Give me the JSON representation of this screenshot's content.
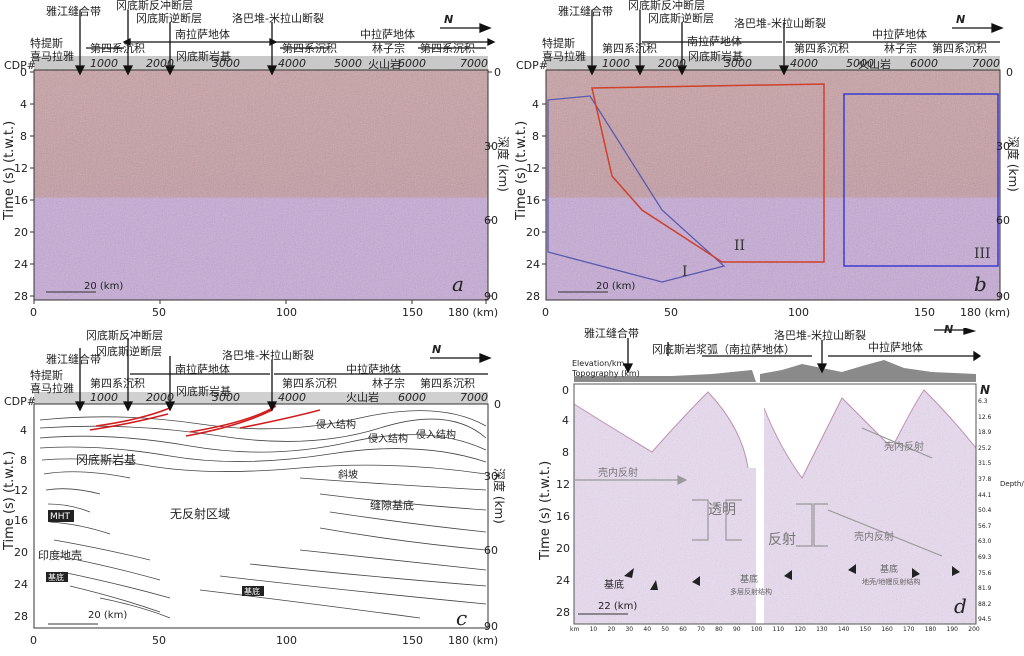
{
  "panels": {
    "a": {
      "letter": "a",
      "header": {
        "zones": [
          "雅江缝合带",
          "冈底斯反冲断层",
          "冈底斯逆断层",
          "洛巴堆-米拉山断裂"
        ],
        "strips": [
          "特提斯",
          "喜马拉雅",
          "第四系沉积",
          "南拉萨地体",
          "冈底斯岩基",
          "第四系沉积",
          "中拉萨地体",
          "林子宗",
          "第四系沉积",
          "火山岩"
        ],
        "north": "N",
        "cdp_label": "CDP#",
        "cdp_ticks": [
          "1000",
          "2000",
          "3000",
          "4000",
          "5000",
          "6000",
          "7000"
        ]
      },
      "ylabel": "Time (s) (t.w.t.)",
      "ylabel_right": "深度 (km)",
      "yticks": [
        "0",
        "4",
        "8",
        "12",
        "16",
        "20",
        "24",
        "28"
      ],
      "depth_ticks": [
        "0",
        "30",
        "60",
        "90"
      ],
      "xticks": [
        "0",
        "50",
        "100",
        "150",
        "180 (km)"
      ],
      "scale": "20 (km)"
    },
    "b": {
      "letter": "b",
      "regions": [
        "I",
        "II",
        "III"
      ],
      "scale": "20 (km)"
    },
    "c": {
      "letter": "c",
      "annotations": [
        "侵入结构",
        "侵入结构",
        "侵入结构",
        "冈底斯岩基",
        "斜坡",
        "缝隙基底",
        "MHT",
        "无反射区域",
        "印度地壳",
        "基底",
        "基底"
      ],
      "scale": "20 (km)"
    },
    "d": {
      "letter": "d",
      "title_top": [
        "雅江缝合带",
        "冈底斯岩浆弧（南拉萨地体）",
        "洛巴堆-米拉山断裂",
        "中拉萨地体"
      ],
      "elevation_label": "Elevation/km",
      "topo_label": "Topography (km)",
      "north": "N",
      "annotations": [
        "壳内反射",
        "透明",
        "反射",
        "壳内反射",
        "壳内反射",
        "基底",
        "基底",
        "基底",
        "多层反射结构",
        "地壳/地幔反射结构"
      ],
      "ylabel": "Time (s) (t.w.t.)",
      "yticks": [
        "0",
        "4",
        "8",
        "12",
        "16",
        "20",
        "24",
        "28"
      ],
      "depth_label": "Depth/km",
      "depth_ticks": [
        "6.3",
        "12.6",
        "18.9",
        "25.2",
        "31.5",
        "37.8",
        "44.1",
        "50.4",
        "56.7",
        "63.0",
        "69.3",
        "75.6",
        "81.9",
        "88.2",
        "94.5"
      ],
      "xticks": [
        "km",
        "10",
        "20",
        "30",
        "40",
        "50",
        "60",
        "70",
        "80",
        "90",
        "100",
        "110",
        "120",
        "130",
        "140",
        "150",
        "160",
        "170",
        "180",
        "190",
        "200"
      ],
      "scale": "22 (km)"
    }
  },
  "colors": {
    "seismic_top": "#c89a9c",
    "seismic_bottom": "#c6a8d8",
    "region_red": "#d0402a",
    "region_blue": "#3b3bd0",
    "fault_red": "#d21d1d"
  }
}
